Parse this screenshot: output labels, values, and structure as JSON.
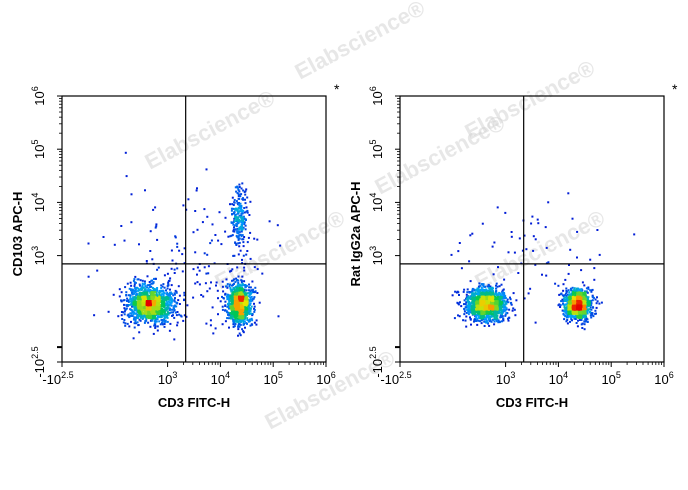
{
  "watermark": "Elabscience®",
  "chart_data": [
    {
      "type": "scatter",
      "subtype": "flow-cytometry-pseudocolor-density",
      "xlabel": "CD3 FITC-H",
      "ylabel": "CD103 APC-H",
      "corner_mark": "*",
      "x_scale": "biexponential",
      "y_scale": "biexponential",
      "xlim": [
        -316,
        1000000
      ],
      "ylim": [
        -316,
        1000000
      ],
      "x_ticks": [
        {
          "base": "-10",
          "exp": "2.5",
          "value": -316
        },
        {
          "base": "10",
          "exp": "3",
          "value": 1000
        },
        {
          "base": "10",
          "exp": "4",
          "value": 10000
        },
        {
          "base": "10",
          "exp": "5",
          "value": 100000
        },
        {
          "base": "10",
          "exp": "6",
          "value": 1000000
        }
      ],
      "y_ticks": [
        {
          "base": "-10",
          "exp": "2.5",
          "value": -316
        },
        {
          "base": "10",
          "exp": "3",
          "value": 1000
        },
        {
          "base": "10",
          "exp": "4",
          "value": 10000
        },
        {
          "base": "10",
          "exp": "5",
          "value": 100000
        },
        {
          "base": "10",
          "exp": "6",
          "value": 1000000
        }
      ],
      "gate": {
        "x": 2200,
        "y": 700
      },
      "populations": [
        {
          "name": "CD3- CD103-",
          "x_log": 2.65,
          "y_log": 2.1,
          "sx": 0.22,
          "sy": 0.17,
          "n": 1400
        },
        {
          "name": "CD3+ CD103-",
          "x_log": 4.35,
          "y_log": 2.1,
          "sx": 0.12,
          "sy": 0.19,
          "n": 1000
        },
        {
          "name": "CD3+ CD103+",
          "x_log": 4.35,
          "y_log": 3.72,
          "sx": 0.08,
          "sy": 0.3,
          "n": 220
        },
        {
          "name": "sparse scatter",
          "x_log": 3.35,
          "y_log": 2.85,
          "sx": 0.75,
          "sy": 0.65,
          "n": 160
        }
      ]
    },
    {
      "type": "scatter",
      "subtype": "flow-cytometry-pseudocolor-density",
      "xlabel": "CD3 FITC-H",
      "ylabel": "Rat IgG2a APC-H",
      "corner_mark": "*",
      "x_scale": "biexponential",
      "y_scale": "biexponential",
      "xlim": [
        -316,
        1000000
      ],
      "ylim": [
        -316,
        1000000
      ],
      "x_ticks": [
        {
          "base": "-10",
          "exp": "2.5",
          "value": -316
        },
        {
          "base": "10",
          "exp": "3",
          "value": 1000
        },
        {
          "base": "10",
          "exp": "4",
          "value": 10000
        },
        {
          "base": "10",
          "exp": "5",
          "value": 100000
        },
        {
          "base": "10",
          "exp": "6",
          "value": 1000000
        }
      ],
      "y_ticks": [
        {
          "base": "-10",
          "exp": "2.5",
          "value": -316
        },
        {
          "base": "10",
          "exp": "3",
          "value": 1000
        },
        {
          "base": "10",
          "exp": "4",
          "value": 10000
        },
        {
          "base": "10",
          "exp": "5",
          "value": 100000
        },
        {
          "base": "10",
          "exp": "6",
          "value": 1000000
        }
      ],
      "gate": {
        "x": 2200,
        "y": 700
      },
      "populations": [
        {
          "name": "CD3- isotype",
          "x_log": 2.62,
          "y_log": 2.1,
          "sx": 0.2,
          "sy": 0.15,
          "n": 1300
        },
        {
          "name": "CD3+ isotype",
          "x_log": 4.35,
          "y_log": 2.1,
          "sx": 0.12,
          "sy": 0.14,
          "n": 1100
        },
        {
          "name": "sparse scatter",
          "x_log": 3.4,
          "y_log": 2.9,
          "sx": 0.75,
          "sy": 0.6,
          "n": 70
        }
      ]
    }
  ]
}
